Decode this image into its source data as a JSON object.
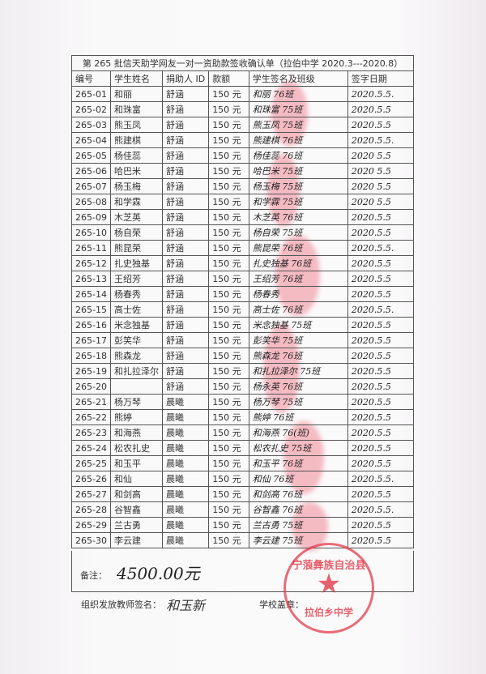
{
  "title": "第 265 批信天助学网友一对一资助款签收确认单（拉伯中学 2020.3---2020.8）",
  "headers": [
    "编号",
    "学生姓名",
    "捐助人 ID",
    "款额",
    "学生签名及班级",
    "签字日期"
  ],
  "rows": [
    {
      "id": "265-01",
      "name": "和丽",
      "donor": "舒涵",
      "amount": "150 元",
      "sign": "和丽 76班",
      "date": "2020.5.5."
    },
    {
      "id": "265-02",
      "name": "和珠富",
      "donor": "舒涵",
      "amount": "150 元",
      "sign": "和珠富 75班",
      "date": "2020.5.5"
    },
    {
      "id": "265-03",
      "name": "熊玉凤",
      "donor": "舒涵",
      "amount": "150 元",
      "sign": "熊玉凤 75班",
      "date": "2020.5.5"
    },
    {
      "id": "265-04",
      "name": "熊建棋",
      "donor": "舒涵",
      "amount": "150 元",
      "sign": "熊建棋 76班",
      "date": "2020.5.5."
    },
    {
      "id": "265-05",
      "name": "杨佳蕊",
      "donor": "舒涵",
      "amount": "150 元",
      "sign": "杨佳蕊 76班",
      "date": "2020 5.5"
    },
    {
      "id": "265-06",
      "name": "哈巴米",
      "donor": "舒涵",
      "amount": "150 元",
      "sign": "哈巴米 75班",
      "date": "2020 5.5"
    },
    {
      "id": "265-07",
      "name": "杨玉梅",
      "donor": "舒涵",
      "amount": "150 元",
      "sign": "杨玉梅 75班",
      "date": "2020 5.5"
    },
    {
      "id": "265-08",
      "name": "和学霖",
      "donor": "舒涵",
      "amount": "150 元",
      "sign": "和学霖 75班",
      "date": "2020 5.5"
    },
    {
      "id": "265-09",
      "name": "木芝英",
      "donor": "舒涵",
      "amount": "150 元",
      "sign": "木芝英 76班",
      "date": "2020.5.5"
    },
    {
      "id": "265-10",
      "name": "杨自荣",
      "donor": "舒涵",
      "amount": "150 元",
      "sign": "杨自荣 75班",
      "date": "2020.5.5"
    },
    {
      "id": "265-11",
      "name": "熊昆荣",
      "donor": "舒涵",
      "amount": "150 元",
      "sign": "熊昆荣 76班",
      "date": "2020.5.5."
    },
    {
      "id": "265-12",
      "name": "扎史独基",
      "donor": "舒涵",
      "amount": "150 元",
      "sign": "扎史独基 76班",
      "date": "2020.5.5"
    },
    {
      "id": "265-13",
      "name": "王绍芳",
      "donor": "舒涵",
      "amount": "150 元",
      "sign": "王绍芳 76班",
      "date": "2020.5.5"
    },
    {
      "id": "265-14",
      "name": "杨春秀",
      "donor": "舒涵",
      "amount": "150 元",
      "sign": "杨春秀",
      "date": "2020.5.5"
    },
    {
      "id": "265-15",
      "name": "高士佐",
      "donor": "舒涵",
      "amount": "150 元",
      "sign": "高士佐 76班",
      "date": "2020.5.5."
    },
    {
      "id": "265-16",
      "name": "米念独基",
      "donor": "舒涵",
      "amount": "150 元",
      "sign": "米念独基 75班",
      "date": "2020.5.5"
    },
    {
      "id": "265-17",
      "name": "彭笑华",
      "donor": "舒涵",
      "amount": "150 元",
      "sign": "彭笑华 75班",
      "date": "2020.5.5"
    },
    {
      "id": "265-18",
      "name": "熊森龙",
      "donor": "舒涵",
      "amount": "150 元",
      "sign": "熊森龙 76班",
      "date": "2020.5.5"
    },
    {
      "id": "265-19",
      "name": "和扎拉泽尔",
      "donor": "舒涵",
      "amount": "150 元",
      "sign": "和扎拉泽尔 75班",
      "date": "2020.5.5"
    },
    {
      "id": "265-20",
      "name": "",
      "donor": "舒涵",
      "amount": "150 元",
      "sign": "杨永英 76班",
      "date": "2020.5.5"
    },
    {
      "id": "265-21",
      "name": "杨万琴",
      "donor": "晨曦",
      "amount": "150 元",
      "sign": "杨万琴 75班",
      "date": "2020.5.5"
    },
    {
      "id": "265-22",
      "name": "熊婷",
      "donor": "晨曦",
      "amount": "150 元",
      "sign": "熊婷 76班",
      "date": "2020.5.5"
    },
    {
      "id": "265-23",
      "name": "和海燕",
      "donor": "晨曦",
      "amount": "150 元",
      "sign": "和海燕 76(班)",
      "date": "2020.5.5"
    },
    {
      "id": "265-24",
      "name": "松农扎史",
      "donor": "晨曦",
      "amount": "150 元",
      "sign": "松农扎史 75班",
      "date": "2020.5.5"
    },
    {
      "id": "265-25",
      "name": "和玉平",
      "donor": "晨曦",
      "amount": "150 元",
      "sign": "和玉平 76班",
      "date": "2020.5.5"
    },
    {
      "id": "265-26",
      "name": "和仙",
      "donor": "晨曦",
      "amount": "150 元",
      "sign": "和仙 76班",
      "date": "2020.5.5."
    },
    {
      "id": "265-27",
      "name": "和剑高",
      "donor": "晨曦",
      "amount": "150 元",
      "sign": "和剑高 76班",
      "date": "2020.5.5"
    },
    {
      "id": "265-28",
      "name": "谷智鑫",
      "donor": "晨曦",
      "amount": "150 元",
      "sign": "谷智鑫 76班",
      "date": "2020.5.5."
    },
    {
      "id": "265-29",
      "name": "兰古勇",
      "donor": "晨曦",
      "amount": "150 元",
      "sign": "兰古勇 75班",
      "date": "2020.5.5"
    },
    {
      "id": "265-30",
      "name": "李云建",
      "donor": "晨曦",
      "amount": "150 元",
      "sign": "李云建 75班",
      "date": "2020.5.5"
    }
  ],
  "remark": {
    "label": "备注：",
    "value": "4500.00元"
  },
  "footer": {
    "teacher_label": "组织发放教师签名：",
    "teacher_sign": "和玉新",
    "stamp_label": "学校盖章："
  },
  "stamp": {
    "top": "宁蒗彝族自治县",
    "bottom": "拉伯乡中学",
    "color": "#e13c4b"
  }
}
